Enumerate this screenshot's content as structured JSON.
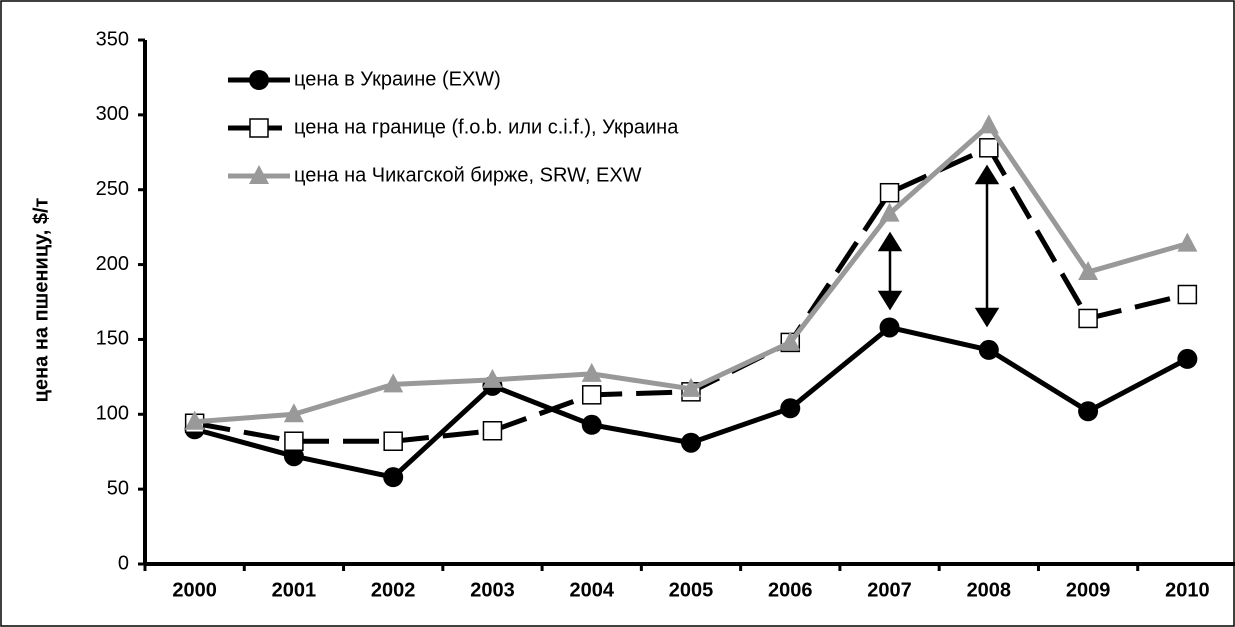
{
  "chart_data": {
    "type": "line",
    "y_label": "цена на пшеницу, $/т",
    "categories": [
      "2000",
      "2001",
      "2002",
      "2003",
      "2004",
      "2005",
      "2006",
      "2007",
      "2008",
      "2009",
      "2010"
    ],
    "series": [
      {
        "name": "цена в Украине (EXW)",
        "color": "#000000",
        "marker": "circle",
        "dashed": false,
        "values": [
          90,
          72,
          58,
          119,
          93,
          81,
          104,
          158,
          143,
          102,
          137
        ]
      },
      {
        "name": "цена на границе (f.o.b. или c.i.f.), Украина",
        "color": "#000000",
        "marker": "square",
        "dashed": true,
        "values": [
          94,
          82,
          82,
          89,
          113,
          115,
          148,
          248,
          278,
          164,
          180
        ]
      },
      {
        "name": "цена на Чикагской бирже, SRW, EXW",
        "color": "#999999",
        "marker": "triangle",
        "dashed": false,
        "values": [
          95,
          100,
          120,
          123,
          127,
          117,
          148,
          234,
          293,
          195,
          214
        ]
      }
    ],
    "ylim": [
      0,
      350
    ],
    "yticks": [
      0,
      50,
      100,
      150,
      200,
      250,
      300,
      350
    ],
    "legend": "upper left"
  }
}
